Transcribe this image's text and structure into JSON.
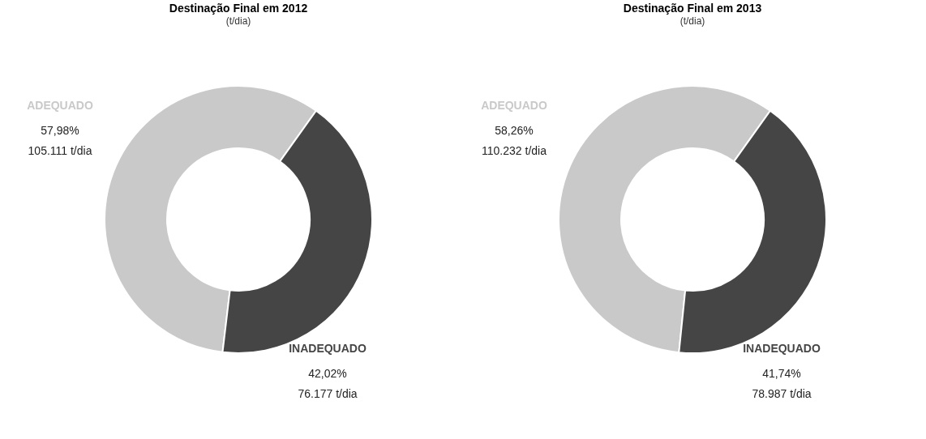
{
  "chart_data": [
    {
      "type": "donut",
      "title": "Destinação Final em 2012",
      "subtitle": "(t/dia)",
      "categories": [
        "ADEQUADO",
        "INADEQUADO"
      ],
      "values": [
        105111,
        76177
      ],
      "colors": [
        "#c9c9c9",
        "#454545"
      ],
      "value_labels": [
        "57,98%\n105.111 t/dia",
        "42,02%\n76.177 t/dia"
      ],
      "legend": false
    },
    {
      "type": "donut",
      "title": "Destinação Final em 2013",
      "subtitle": "(t/dia)",
      "categories": [
        "ADEQUADO",
        "INADEQUADO"
      ],
      "values": [
        110232,
        78987
      ],
      "colors": [
        "#c9c9c9",
        "#454545"
      ],
      "value_labels": [
        "58,26%\n110.232 t/dia",
        "41,74%\n78.987 t/dia"
      ],
      "legend": false
    }
  ]
}
